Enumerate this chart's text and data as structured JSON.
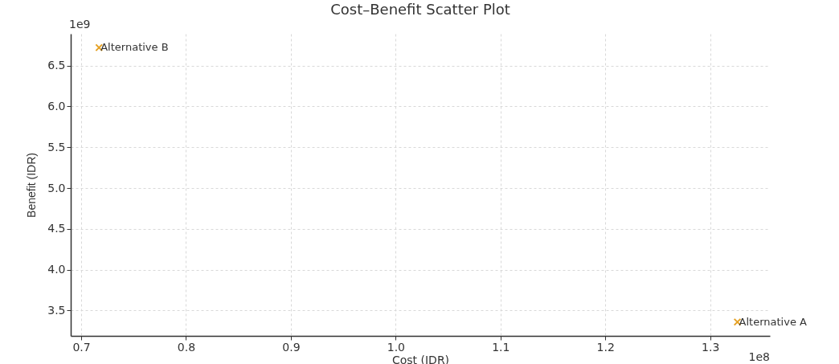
{
  "chart_data": {
    "type": "scatter",
    "title": "Cost–Benefit Scatter Plot",
    "xlabel": "Cost (IDR)",
    "ylabel": "Benefit (IDR)",
    "series": [
      {
        "name": "Alternative A",
        "color": "#e5a124",
        "x": [
          1.326
        ],
        "values": [
          3.36
        ]
      },
      {
        "name": "Alternative B",
        "color": "#e5a124",
        "x": [
          0.717
        ],
        "values": [
          6.72
        ]
      }
    ],
    "xlim": [
      0.69,
      1.357
    ],
    "xticks": [
      0.7,
      0.8,
      0.9,
      {
        "value": 1.0,
        "label": "1.0"
      },
      1.1,
      1.2,
      1.3
    ],
    "ylim": [
      3.19,
      6.89
    ],
    "yticks": [
      3.5,
      {
        "value": 4.0,
        "label": "4.0"
      },
      4.5,
      {
        "value": 5.0,
        "label": "5.0"
      },
      5.5,
      {
        "value": 6.0,
        "label": "6.0"
      },
      6.5
    ],
    "annotations": [
      "1e9",
      "1e8"
    ],
    "grid": true,
    "marker": "cross",
    "legend": false
  }
}
